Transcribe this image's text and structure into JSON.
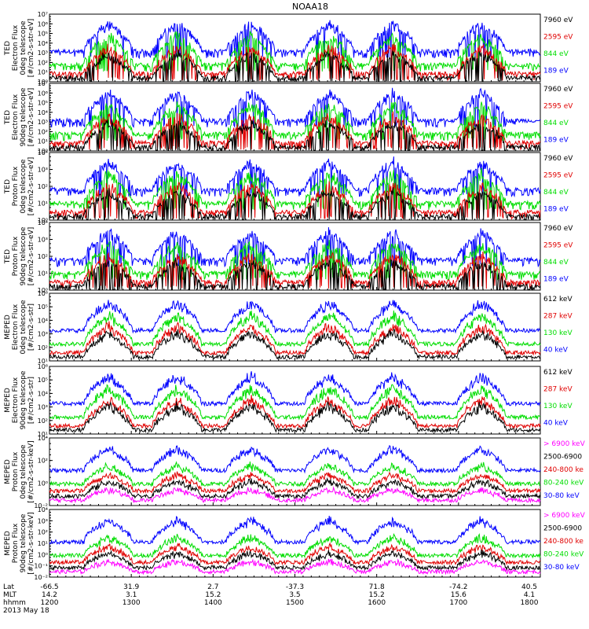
{
  "title": "NOAA18",
  "axis_footer": {
    "row_labels": [
      "Lat",
      "MLT",
      "hhmm",
      "2013 May 18"
    ],
    "lat": [
      "-66.5",
      "31.9",
      "2.7",
      "-37.3",
      "71.8",
      "-74.2",
      "40.5"
    ],
    "mlt": [
      "14.2",
      "3.1",
      "15.2",
      "3.5",
      "15.2",
      "15.6",
      "4.1"
    ],
    "hhmm": [
      "1200",
      "1300",
      "1400",
      "1500",
      "1600",
      "1700",
      "1800"
    ]
  },
  "colors": {
    "black": "#000000",
    "red": "#e00000",
    "green": "#00dd00",
    "blue": "#0000ff",
    "magenta": "#ff00ff"
  },
  "chart_data": [
    {
      "type": "line",
      "ylabel_lines": [
        "TED",
        "Electron Flux",
        "0deg telescope",
        "[#/cm2-s-str-eV]"
      ],
      "yscale": "log",
      "ylim": [
        1,
        10000000
      ],
      "yticks": [
        "10⁰",
        "10¹",
        "10²",
        "10³",
        "10⁴",
        "10⁵",
        "10⁶",
        "10⁷"
      ],
      "series": [
        {
          "name": "7960 eV",
          "color": "black"
        },
        {
          "name": "2595 eV",
          "color": "red"
        },
        {
          "name": "844 eV",
          "color": "green"
        },
        {
          "name": "189 eV",
          "color": "blue"
        }
      ]
    },
    {
      "type": "line",
      "ylabel_lines": [
        "TED",
        "Electron Flux",
        "90deg telescope",
        "[#/cm2-s-str-eV]"
      ],
      "yscale": "log",
      "ylim": [
        1,
        10000000
      ],
      "yticks": [
        "10⁰",
        "10¹",
        "10²",
        "10³",
        "10⁴",
        "10⁵",
        "10⁶",
        "10⁷"
      ],
      "series": [
        {
          "name": "7960 eV",
          "color": "black"
        },
        {
          "name": "2595 eV",
          "color": "red"
        },
        {
          "name": "844 eV",
          "color": "green"
        },
        {
          "name": "189 eV",
          "color": "blue"
        }
      ]
    },
    {
      "type": "line",
      "ylabel_lines": [
        "TED",
        "Proton Flux",
        "0deg telescope",
        "[#/cm2-s-str-eV]"
      ],
      "yscale": "log",
      "ylim": [
        1,
        10000
      ],
      "yticks": [
        "10⁰",
        "10¹",
        "10²",
        "10³",
        "10⁴"
      ],
      "series": [
        {
          "name": "7960 eV",
          "color": "black"
        },
        {
          "name": "2595 eV",
          "color": "red"
        },
        {
          "name": "844 eV",
          "color": "green"
        },
        {
          "name": "189 eV",
          "color": "blue"
        }
      ]
    },
    {
      "type": "line",
      "ylabel_lines": [
        "TED",
        "Proton Flux",
        "90deg telescope",
        "[#/cm2-s-str-eV]"
      ],
      "yscale": "log",
      "ylim": [
        1,
        10000
      ],
      "yticks": [
        "10⁰",
        "10¹",
        "10²",
        "10³",
        "10⁴"
      ],
      "series": [
        {
          "name": "7960 eV",
          "color": "black"
        },
        {
          "name": "2595 eV",
          "color": "red"
        },
        {
          "name": "844 eV",
          "color": "green"
        },
        {
          "name": "189 eV",
          "color": "blue"
        }
      ]
    },
    {
      "type": "line",
      "ylabel_lines": [
        "MEPED",
        "Electron Flux",
        "0deg telescope",
        "[#/cm2-s-str]"
      ],
      "yscale": "log",
      "ylim": [
        10,
        1000000
      ],
      "yticks": [
        "10¹",
        "10²",
        "10³",
        "10⁴",
        "10⁵",
        "10⁶"
      ],
      "series": [
        {
          "name": "612 keV",
          "color": "black"
        },
        {
          "name": "287 keV",
          "color": "red"
        },
        {
          "name": "130 keV",
          "color": "green"
        },
        {
          "name": "40 keV",
          "color": "blue"
        }
      ]
    },
    {
      "type": "line",
      "ylabel_lines": [
        "MEPED",
        "Electron Flux",
        "90deg telescope",
        "[#/cm2-s-str]"
      ],
      "yscale": "log",
      "ylim": [
        10,
        1000000
      ],
      "yticks": [
        "10¹",
        "10²",
        "10³",
        "10⁴",
        "10⁵",
        "10⁶"
      ],
      "series": [
        {
          "name": "612 keV",
          "color": "black"
        },
        {
          "name": "287 keV",
          "color": "red"
        },
        {
          "name": "130 keV",
          "color": "green"
        },
        {
          "name": "40 keV",
          "color": "blue"
        }
      ]
    },
    {
      "type": "line",
      "ylabel_lines": [
        "MEPED",
        "Proton Flux",
        "0deg telescope",
        "[#/cm2-s-str-keV]"
      ],
      "yscale": "log",
      "ylim": [
        0.01,
        10000
      ],
      "yticks": [
        "10⁻²",
        "10⁰",
        "10²",
        "10⁴"
      ],
      "series": [
        {
          "name": "> 6900 keV",
          "color": "magenta"
        },
        {
          "name": "2500-6900",
          "color": "black"
        },
        {
          "name": "240-800 ke",
          "color": "red"
        },
        {
          "name": "80-240 keV",
          "color": "green"
        },
        {
          "name": "30-80 keV",
          "color": "blue"
        }
      ]
    },
    {
      "type": "line",
      "ylabel_lines": [
        "MEPED",
        "Proton Flux",
        "90deg telescope",
        "[#/cm2-s-str-keV]"
      ],
      "yscale": "log",
      "ylim": [
        0.01,
        10000
      ],
      "yticks": [
        "10⁻²",
        "10⁻¹",
        "10⁰",
        "10¹",
        "10²",
        "10³",
        "10⁴"
      ],
      "series": [
        {
          "name": "> 6900 keV",
          "color": "magenta"
        },
        {
          "name": "2500-6900",
          "color": "black"
        },
        {
          "name": "240-800 ke",
          "color": "red"
        },
        {
          "name": "80-240 keV",
          "color": "green"
        },
        {
          "name": "30-80 keV",
          "color": "blue"
        }
      ]
    }
  ]
}
